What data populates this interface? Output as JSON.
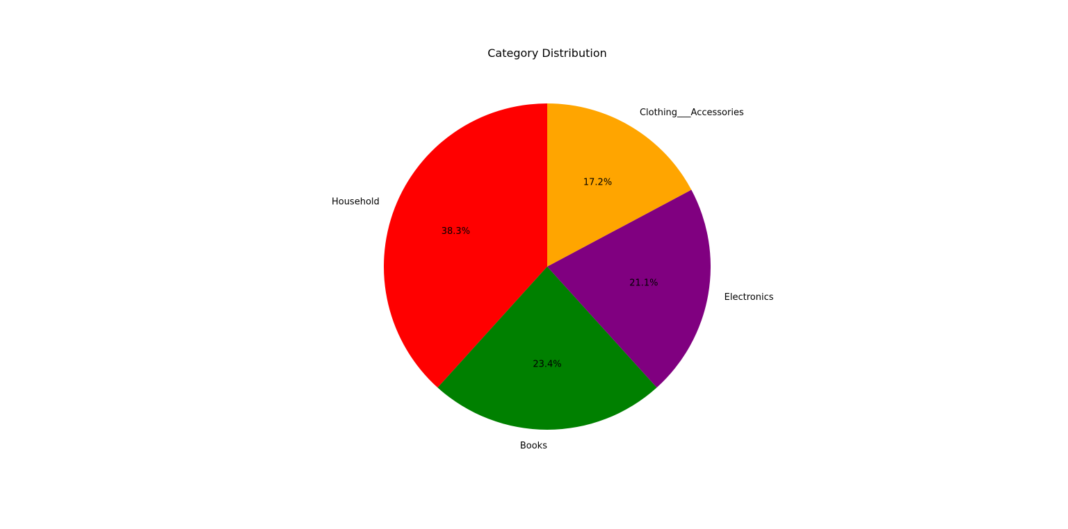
{
  "chart_data": {
    "type": "pie",
    "title": "Category Distribution",
    "categories": [
      "Household",
      "Books",
      "Electronics",
      "Clothing___Accessories"
    ],
    "values": [
      38.3,
      23.4,
      21.1,
      17.2
    ],
    "percent_labels": [
      "38.3%",
      "23.4%",
      "21.1%",
      "17.2%"
    ],
    "colors": [
      "#ff0000",
      "#008000",
      "#800080",
      "#ffa500"
    ],
    "start_angle_deg": 90,
    "direction": "counterclockwise",
    "legend": "none"
  }
}
